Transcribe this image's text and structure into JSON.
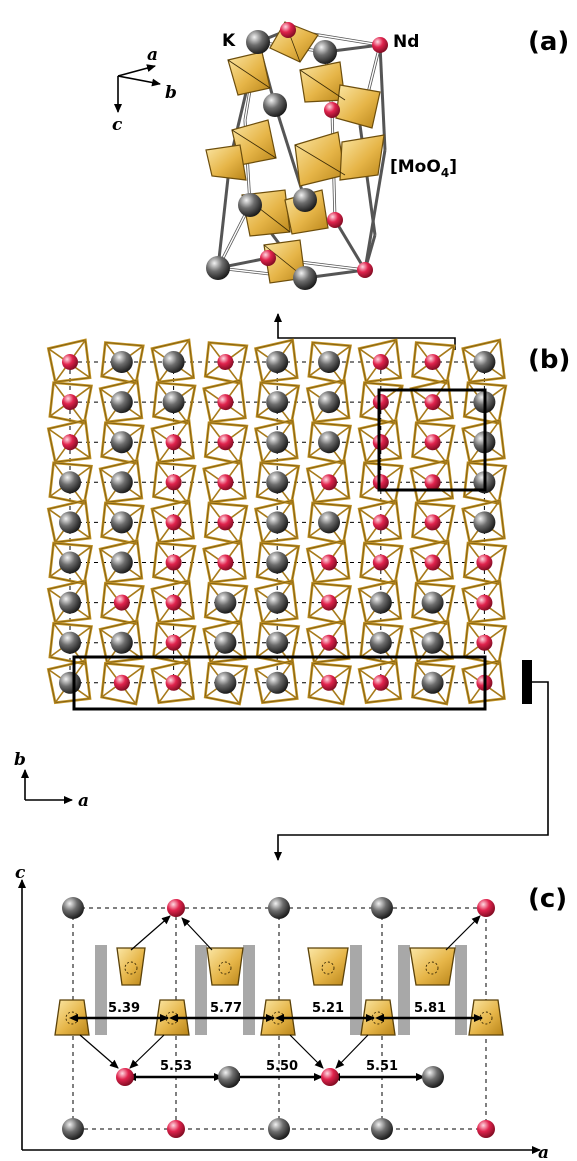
{
  "panels": {
    "a": {
      "label": "(a)",
      "atom_k": "K",
      "atom_nd": "Nd",
      "tetra_main": "[MoO",
      "tetra_sub": "4",
      "tetra_end": "]",
      "axis_a": "a",
      "axis_b": "b",
      "axis_c": "c"
    },
    "b": {
      "label": "(b)",
      "axis_a": "a",
      "axis_b": "b"
    },
    "c": {
      "label": "(c)",
      "axis_a": "a",
      "axis_c": "c",
      "top_distances": [
        "5.39",
        "5.77",
        "5.21",
        "5.81"
      ],
      "bottom_distances": [
        "5.53",
        "5.50",
        "5.51"
      ]
    }
  },
  "colors": {
    "k_atom": "#2a2a2a",
    "nd_atom": "#d2143c",
    "tetra_fill": "#e8b94a",
    "tetra_edge": "#7a5a10",
    "spacer": "#a8a8a8"
  },
  "grid_b": {
    "rows": [
      [
        "N",
        "K",
        "K",
        "N",
        "K",
        "K",
        "N",
        "N",
        "K"
      ],
      [
        "N",
        "K",
        "K",
        "N",
        "K",
        "K",
        "N",
        "N",
        "K"
      ],
      [
        "N",
        "K",
        "N",
        "N",
        "K",
        "K",
        "N",
        "N",
        "K"
      ],
      [
        "K",
        "K",
        "N",
        "N",
        "K",
        "N",
        "N",
        "N",
        "K"
      ],
      [
        "K",
        "K",
        "N",
        "N",
        "K",
        "K",
        "N",
        "N",
        "K"
      ],
      [
        "K",
        "K",
        "N",
        "N",
        "K",
        "N",
        "N",
        "N",
        "N"
      ],
      [
        "K",
        "N",
        "N",
        "K",
        "K",
        "N",
        "K",
        "K",
        "N"
      ],
      [
        "K",
        "K",
        "N",
        "K",
        "K",
        "N",
        "K",
        "K",
        "N"
      ],
      [
        "K",
        "N",
        "N",
        "K",
        "K",
        "N",
        "N",
        "K",
        "N"
      ]
    ]
  }
}
